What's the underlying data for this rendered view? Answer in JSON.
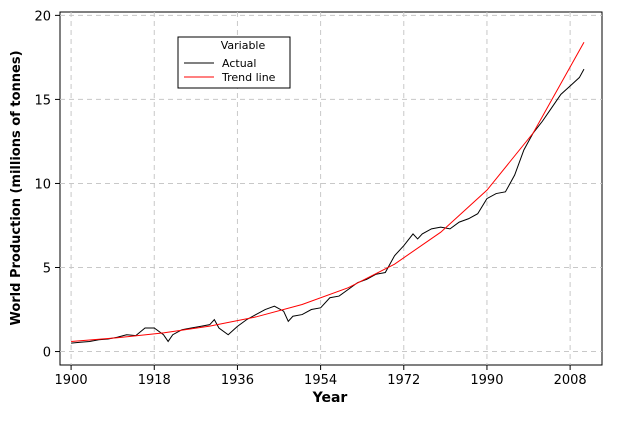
{
  "chart_data": {
    "type": "line",
    "x_label": "Year",
    "y_label": "World Production (millions of tonnes)",
    "xlim": [
      1897.6,
      2014.9
    ],
    "ylim": [
      -0.8,
      20.2
    ],
    "xticks": [
      1900,
      1918,
      1936,
      1954,
      1972,
      1990,
      2008
    ],
    "yticks": [
      0,
      5,
      10,
      15,
      20
    ],
    "grid": true,
    "legend_title": "Variable",
    "legend_position": "upper-left",
    "series": [
      {
        "name": "Actual",
        "color": "#000000",
        "x": [
          1900,
          1902,
          1904,
          1906,
          1908,
          1910,
          1912,
          1914,
          1916,
          1918,
          1920,
          1921,
          1922,
          1924,
          1926,
          1928,
          1930,
          1931,
          1932,
          1934,
          1936,
          1938,
          1940,
          1942,
          1944,
          1946,
          1947,
          1948,
          1950,
          1952,
          1954,
          1956,
          1958,
          1960,
          1962,
          1964,
          1966,
          1968,
          1970,
          1972,
          1974,
          1975,
          1976,
          1978,
          1980,
          1982,
          1984,
          1986,
          1988,
          1990,
          1992,
          1994,
          1996,
          1998,
          2000,
          2002,
          2004,
          2006,
          2008,
          2010,
          2011
        ],
        "values": [
          0.5,
          0.55,
          0.6,
          0.7,
          0.75,
          0.85,
          1.0,
          0.95,
          1.4,
          1.4,
          1.0,
          0.6,
          1.0,
          1.3,
          1.4,
          1.5,
          1.6,
          1.9,
          1.4,
          1.0,
          1.5,
          1.9,
          2.2,
          2.5,
          2.7,
          2.4,
          1.8,
          2.1,
          2.2,
          2.5,
          2.6,
          3.2,
          3.3,
          3.7,
          4.1,
          4.3,
          4.6,
          4.7,
          5.7,
          6.3,
          7.0,
          6.7,
          7.0,
          7.3,
          7.4,
          7.3,
          7.7,
          7.9,
          8.2,
          9.1,
          9.4,
          9.5,
          10.5,
          12.0,
          13.0,
          13.7,
          14.5,
          15.3,
          15.8,
          16.3,
          16.8
        ]
      },
      {
        "name": "Trend line",
        "color": "#ff0000",
        "x": [
          1900,
          1910,
          1920,
          1930,
          1940,
          1950,
          1960,
          1970,
          1980,
          1990,
          2000,
          2011
        ],
        "values": [
          0.6,
          0.82,
          1.11,
          1.51,
          2.06,
          2.8,
          3.8,
          5.2,
          7.1,
          9.6,
          13.0,
          18.4
        ]
      }
    ]
  }
}
